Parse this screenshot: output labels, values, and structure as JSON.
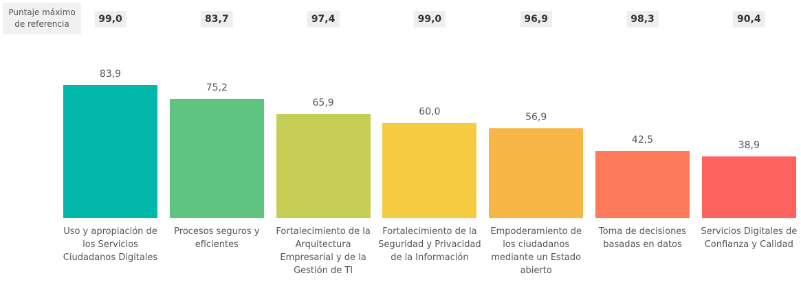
{
  "chart_data": {
    "type": "bar",
    "reference": {
      "label": "Puntaje máximo de referencia",
      "values": [
        99.0,
        83.7,
        97.4,
        99.0,
        96.9,
        98.3,
        90.4
      ],
      "value_labels": [
        "99,0",
        "83,7",
        "97,4",
        "99,0",
        "96,9",
        "98,3",
        "90,4"
      ]
    },
    "categories": [
      "Uso y apropiación de los Servicios Ciudadanos Digitales",
      "Procesos seguros y eficientes",
      "Fortalecimiento de la Arquitectura Empresarial y de la Gestión de TI",
      "Fortalecimiento de la Seguridad y Privacidad de la Información",
      "Empoderamiento de los ciudadanos mediante un Estado abierto",
      "Toma de decisiones basadas en datos",
      "Servicios Digitales de Confianza y Calidad"
    ],
    "values": [
      83.9,
      75.2,
      65.9,
      60.0,
      56.9,
      42.5,
      38.9
    ],
    "value_labels": [
      "83,9",
      "75,2",
      "65,9",
      "60,0",
      "56,9",
      "42,5",
      "38,9"
    ],
    "colors": [
      "#01b8aa",
      "#5fc47f",
      "#c6cd55",
      "#f5cb42",
      "#f6b545",
      "#fe7a5a",
      "#fd625e"
    ]
  }
}
